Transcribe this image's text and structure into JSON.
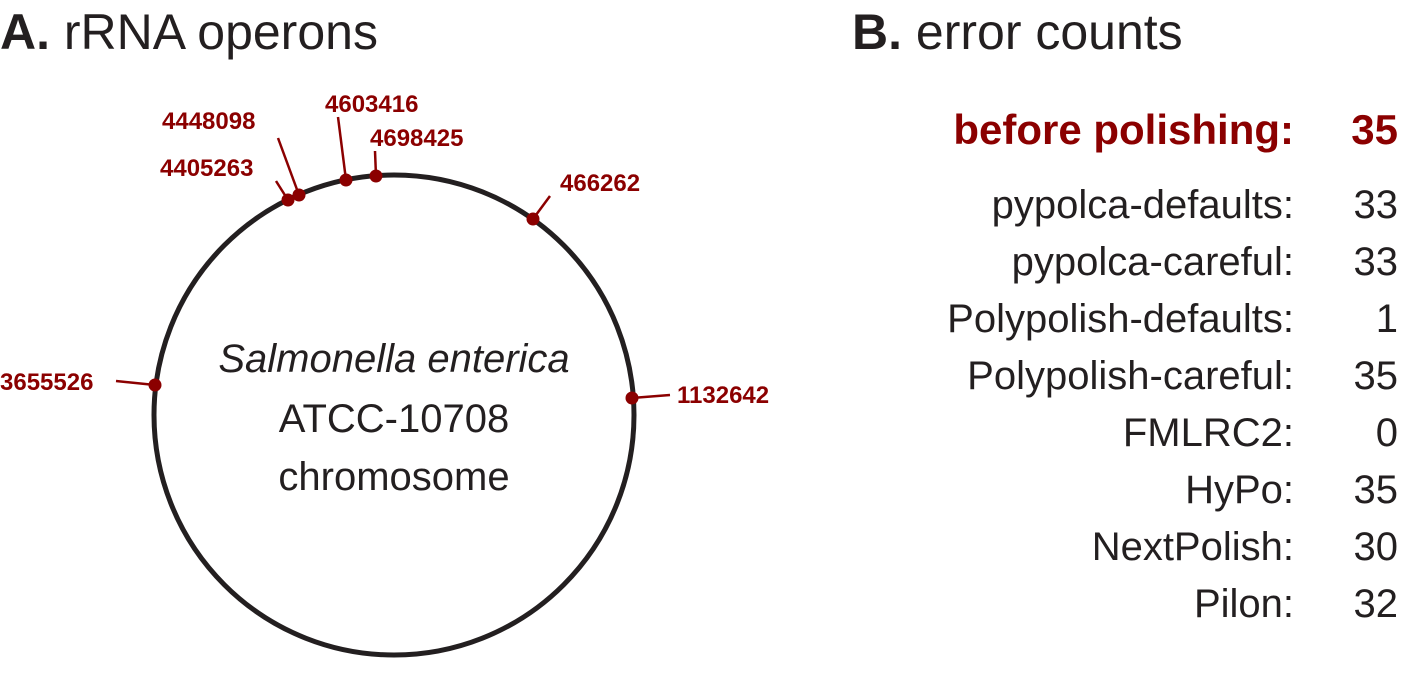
{
  "panel_a": {
    "letter": "A.",
    "title": "rRNA operons",
    "organism": "Salmonella enterica",
    "strain": "ATCC-10708",
    "replicon": "chromosome",
    "operons": [
      {
        "position": "4448098"
      },
      {
        "position": "4603416"
      },
      {
        "position": "4698425"
      },
      {
        "position": "4405263"
      },
      {
        "position": "466262"
      },
      {
        "position": "3655526"
      },
      {
        "position": "1132642"
      }
    ],
    "colors": {
      "operon": "#8b0000",
      "circle": "#231f20"
    }
  },
  "panel_b": {
    "letter": "B.",
    "title": "error counts",
    "rows": [
      {
        "label": "before polishing:",
        "value": "35",
        "highlight": true
      },
      {
        "label": "pypolca-defaults:",
        "value": "33"
      },
      {
        "label": "pypolca-careful:",
        "value": "33"
      },
      {
        "label": "Polypolish-defaults:",
        "value": "1"
      },
      {
        "label": "Polypolish-careful:",
        "value": "35"
      },
      {
        "label": "FMLRC2:",
        "value": "0"
      },
      {
        "label": "HyPo:",
        "value": "35"
      },
      {
        "label": "NextPolish:",
        "value": "30"
      },
      {
        "label": "Pilon:",
        "value": "32"
      }
    ]
  }
}
